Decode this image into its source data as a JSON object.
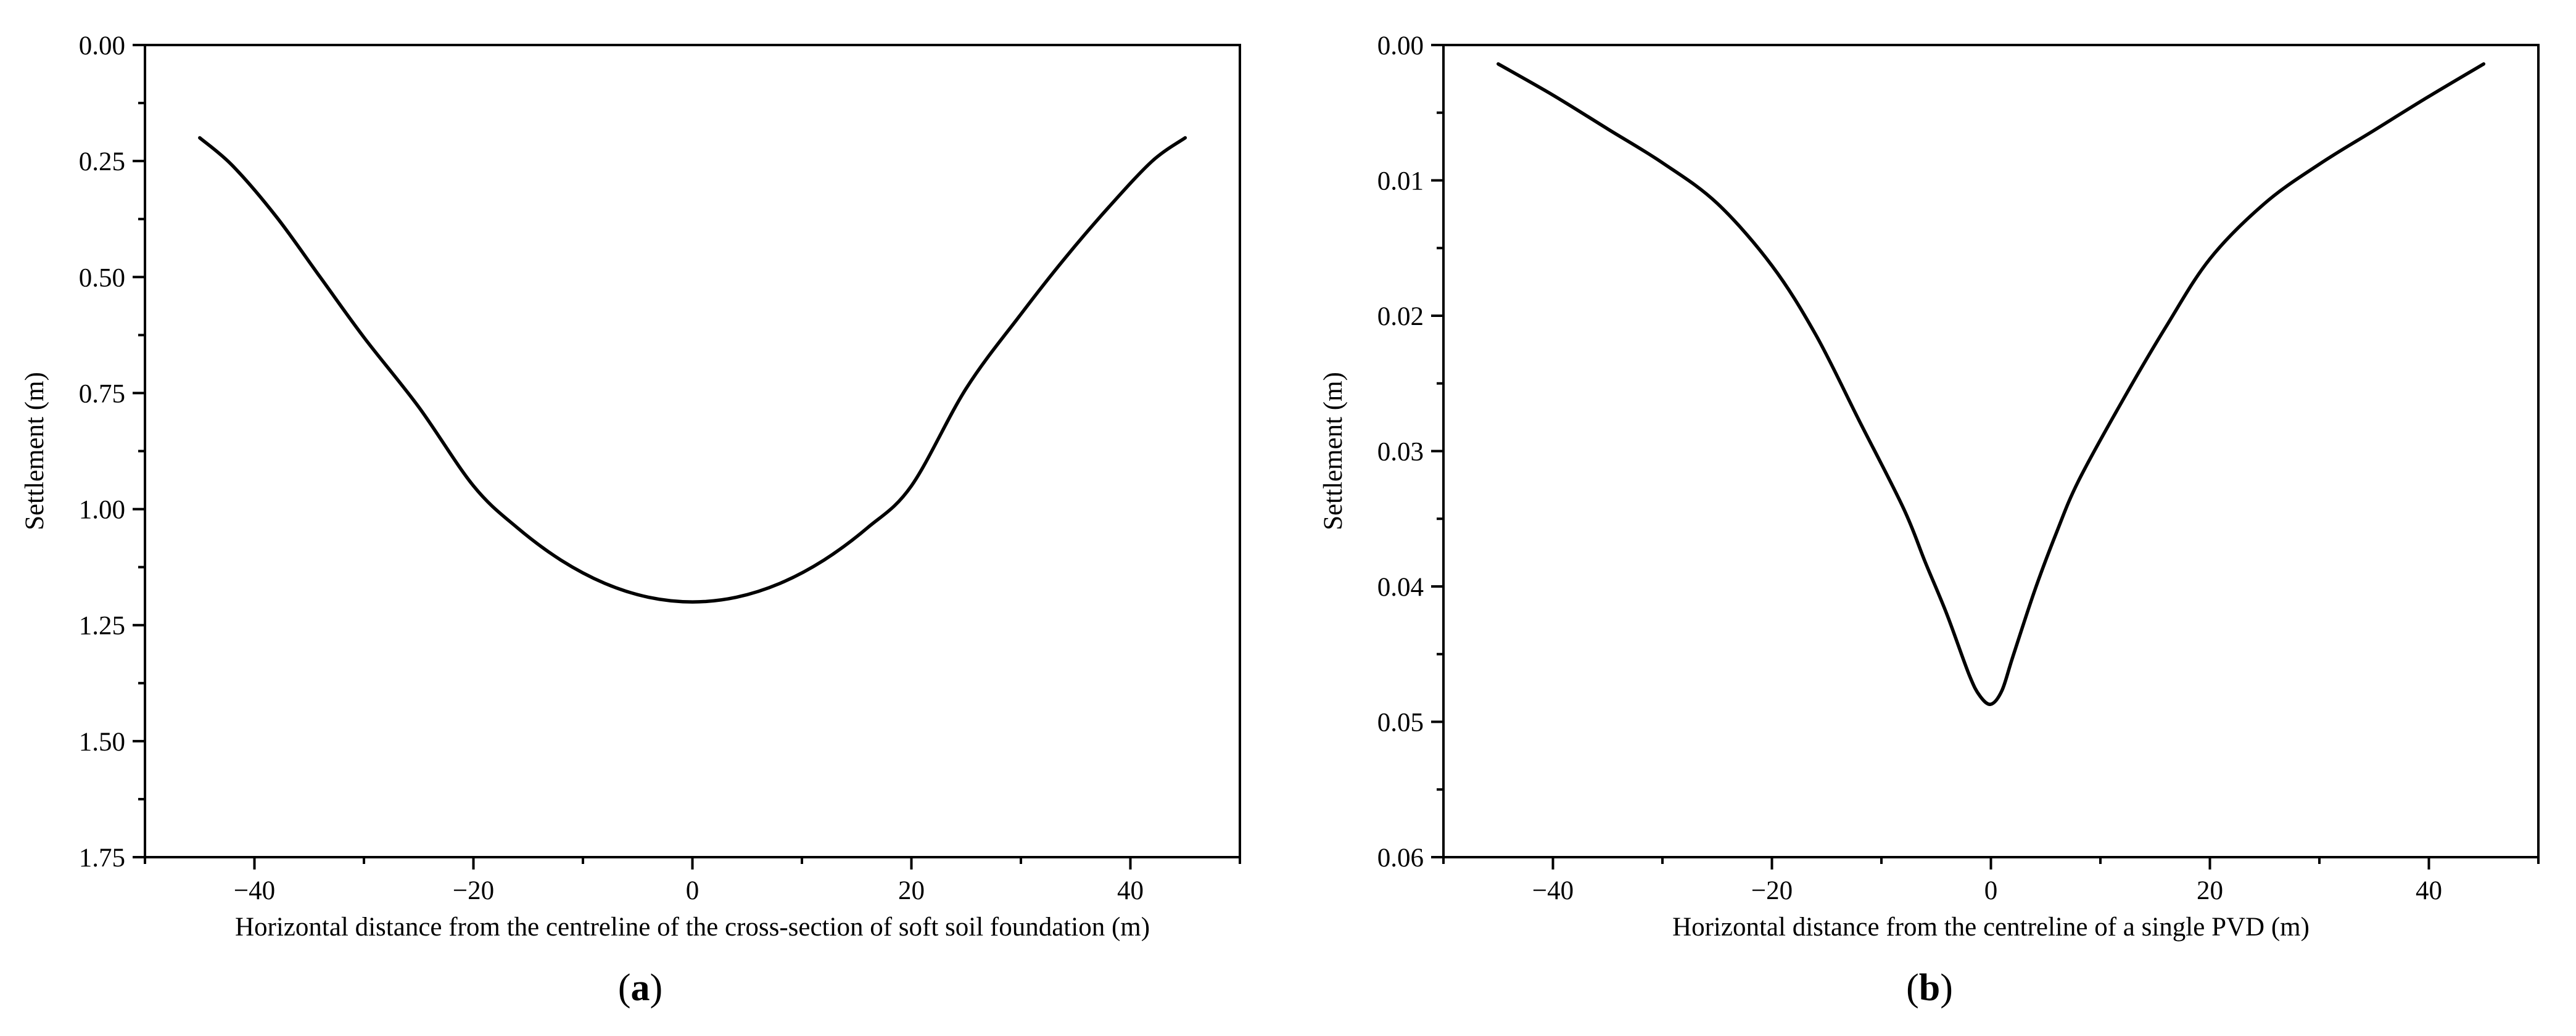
{
  "chart_data": [
    {
      "type": "line",
      "panel_label": "(a)",
      "title": "",
      "xlabel": "Horizontal distance from the centreline of the cross-section of soft soil foundation (m)",
      "ylabel": "Settlement (m)",
      "xlim": [
        -50,
        50
      ],
      "ylim": [
        1.75,
        0.0
      ],
      "y_inverted": true,
      "xticks": [
        -40,
        -20,
        0,
        20,
        40
      ],
      "xtick_labels": [
        "−40",
        "−20",
        "0",
        "20",
        "40"
      ],
      "yticks": [
        0.0,
        0.25,
        0.5,
        0.75,
        1.0,
        1.25,
        1.5,
        1.75
      ],
      "ytick_labels": [
        "0.00",
        "0.25",
        "0.50",
        "0.75",
        "1.00",
        "1.25",
        "1.50",
        "1.75"
      ],
      "grid": false,
      "line_color": "#000000",
      "series": [
        {
          "x": [
            -45,
            -42,
            -38,
            -34,
            -30,
            -25,
            -20,
            -16,
            -12,
            -8,
            -4,
            0,
            4,
            8,
            12,
            16,
            20,
            25,
            30,
            34,
            38,
            42,
            45
          ],
          "y": [
            0.2,
            0.26,
            0.37,
            0.5,
            0.63,
            0.78,
            0.95,
            1.04,
            1.11,
            1.16,
            1.19,
            1.2,
            1.19,
            1.16,
            1.11,
            1.04,
            0.95,
            0.74,
            0.58,
            0.46,
            0.35,
            0.25,
            0.2
          ]
        }
      ]
    },
    {
      "type": "line",
      "panel_label": "(b)",
      "title": "",
      "xlabel": "Horizontal distance from the centreline of a single PVD (m)",
      "ylabel": "Settlement (m)",
      "xlim": [
        -50,
        50
      ],
      "ylim": [
        0.06,
        0.0
      ],
      "y_inverted": true,
      "xticks": [
        -40,
        -20,
        0,
        20,
        40
      ],
      "xtick_labels": [
        "−40",
        "−20",
        "0",
        "20",
        "40"
      ],
      "yticks": [
        0.0,
        0.01,
        0.02,
        0.03,
        0.04,
        0.05,
        0.06
      ],
      "ytick_labels": [
        "0.00",
        "0.01",
        "0.02",
        "0.03",
        "0.04",
        "0.05",
        "0.06"
      ],
      "grid": false,
      "line_color": "#000000",
      "series": [
        {
          "x": [
            -45,
            -40,
            -35,
            -30,
            -25,
            -20,
            -16,
            -12,
            -8,
            -6,
            -4,
            -2,
            -1,
            0,
            1,
            2,
            4,
            6,
            8,
            12,
            16,
            20,
            25,
            30,
            35,
            40,
            45
          ],
          "y": [
            0.0014,
            0.0037,
            0.0062,
            0.0087,
            0.0117,
            0.0163,
            0.0214,
            0.0278,
            0.0342,
            0.0382,
            0.0421,
            0.0465,
            0.0481,
            0.0487,
            0.0477,
            0.0452,
            0.0403,
            0.036,
            0.0322,
            0.0263,
            0.0208,
            0.0158,
            0.0117,
            0.0088,
            0.0063,
            0.0038,
            0.0014
          ]
        }
      ]
    }
  ]
}
